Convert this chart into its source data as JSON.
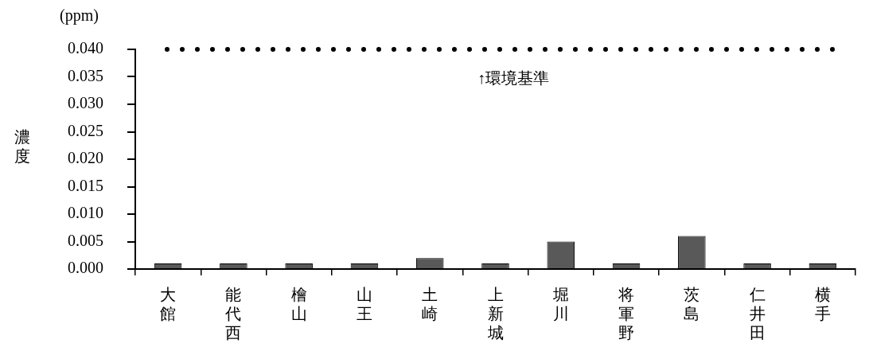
{
  "chart_data": {
    "type": "bar",
    "ylabel": "濃度",
    "annotations": [
      "(ppm)"
    ],
    "categories": [
      "大館",
      "能代西",
      "檜山",
      "山王",
      "土崎",
      "上新城",
      "堀川",
      "将軍野",
      "茨島",
      "仁井田",
      "横手"
    ],
    "values": [
      0.001,
      0.001,
      0.001,
      0.001,
      0.002,
      0.001,
      0.005,
      0.001,
      0.006,
      0.001,
      0.001
    ],
    "color": "#595959",
    "ylim": [
      0,
      0.04
    ],
    "yticks": [
      {
        "value": 0,
        "label": "0.000"
      },
      {
        "value": 0.005,
        "label": "0.005"
      },
      {
        "value": 0.01,
        "label": "0.010"
      },
      {
        "value": 0.015,
        "label": "0.015"
      },
      {
        "value": 0.02,
        "label": "0.020"
      },
      {
        "value": 0.025,
        "label": "0.025"
      },
      {
        "value": 0.03,
        "label": "0.030"
      },
      {
        "value": 0.035,
        "label": "0.035"
      },
      {
        "value": 0.04,
        "label": "0.040"
      }
    ],
    "ref_lines": [
      {
        "axis": "y",
        "value": 0.04,
        "label": "↑環境基準",
        "color": "#000000",
        "line_style": "dotted"
      }
    ],
    "grid": false,
    "legend": false
  }
}
